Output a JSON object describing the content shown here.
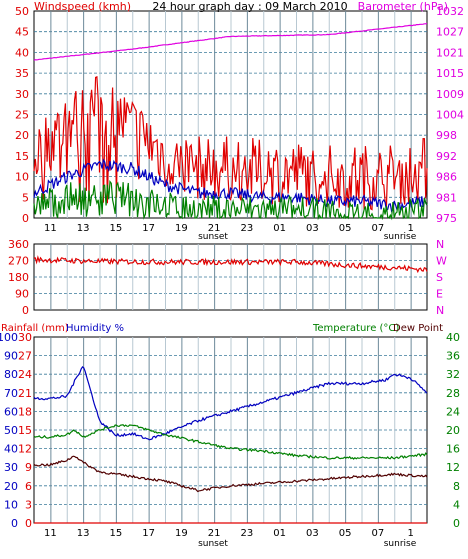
{
  "chart_data": [
    {
      "id": "wind-baro",
      "type": "line",
      "title": "24 hour graph day : 09 March 2010",
      "left_label": "Windspeed (kmh)",
      "right_label": "Barometer (hPa)",
      "ylim_left": [
        0,
        50
      ],
      "left_ticks": [
        "0",
        "5",
        "10",
        "15",
        "20",
        "25",
        "30",
        "35",
        "40",
        "45",
        "50"
      ],
      "ylim_right": [
        975,
        1032
      ],
      "right_ticks": [
        "975",
        "981",
        "986",
        "992",
        "998",
        "1004",
        "1009",
        "1015",
        "1021",
        "1027",
        "1032"
      ],
      "x_labels": [
        "11",
        "13",
        "15",
        "17",
        "19",
        "21",
        "23",
        "01",
        "03",
        "05",
        "07",
        "1"
      ],
      "x_marker_labels": [
        "sunset",
        "sunrise"
      ],
      "grid": true,
      "series": [
        {
          "key": "barometer",
          "color": "#e000e0",
          "axis": "right",
          "x": [
            0,
            6,
            12,
            18,
            24
          ],
          "y": [
            1018.5,
            1021.5,
            1025,
            1025.5,
            1028.5
          ]
        },
        {
          "key": "gust",
          "color": "#e00000",
          "axis": "left",
          "x": [
            0,
            2,
            4,
            6,
            8,
            10,
            12,
            14,
            16,
            18,
            20,
            22,
            24
          ],
          "y": [
            15,
            23,
            27,
            22,
            15,
            12,
            12,
            11,
            11,
            10,
            10,
            10,
            12
          ]
        },
        {
          "key": "average",
          "color": "#0000c0",
          "axis": "left",
          "x": [
            0,
            2,
            4,
            6,
            8,
            10,
            12,
            14,
            16,
            18,
            20,
            22,
            24
          ],
          "y": [
            6,
            10,
            13,
            12,
            8,
            6,
            6,
            5,
            5,
            4,
            4,
            3,
            4
          ]
        },
        {
          "key": "minimum",
          "color": "#008000",
          "axis": "left",
          "x": [
            0,
            2,
            4,
            6,
            8,
            10,
            12,
            14,
            16,
            18,
            20,
            22,
            24
          ],
          "y": [
            3,
            5,
            6,
            5,
            3,
            2,
            2,
            2,
            2,
            1,
            1,
            1,
            2
          ]
        }
      ]
    },
    {
      "id": "wind-dir",
      "type": "line",
      "ylim_left": [
        0,
        360
      ],
      "left_ticks": [
        "0",
        "90",
        "180",
        "270",
        "360"
      ],
      "right_ticks": [
        "N",
        "E",
        "S",
        "W",
        "N"
      ],
      "grid": true,
      "series": [
        {
          "key": "direction",
          "color": "#e00000",
          "axis": "left",
          "x": [
            0,
            4,
            8,
            12,
            16,
            20,
            22,
            24
          ],
          "y": [
            275,
            265,
            262,
            262,
            262,
            240,
            232,
            220
          ]
        }
      ]
    },
    {
      "id": "temp-hum-rain",
      "type": "line",
      "rain_label": "Rainfall (mm)",
      "humidity_label": "Humidity %",
      "temp_label": "Temperature (°C)",
      "dew_label": "Dew Point",
      "ylim_left": [
        0,
        100
      ],
      "left_ticks_hum": [
        "0",
        "10",
        "20",
        "30",
        "40",
        "50",
        "60",
        "70",
        "80",
        "90",
        "100"
      ],
      "left_ticks_rain": [
        "0",
        "3",
        "6",
        "9",
        "12",
        "15",
        "18",
        "21",
        "24",
        "27",
        "30"
      ],
      "ylim_right": [
        0,
        40
      ],
      "right_ticks": [
        "0",
        "4",
        "8",
        "12",
        "16",
        "20",
        "24",
        "28",
        "32",
        "36",
        "40"
      ],
      "grid": true,
      "series": [
        {
          "key": "humidity",
          "color": "#0000c0",
          "axis": "left",
          "x": [
            0,
            1,
            2,
            3,
            4,
            5,
            6,
            7,
            8,
            10,
            12,
            14,
            16,
            18,
            20,
            21.5,
            22,
            23,
            24
          ],
          "y": [
            67,
            67,
            68,
            85,
            55,
            47,
            48,
            45,
            48,
            55,
            60,
            65,
            70,
            75,
            75,
            77,
            80,
            78,
            70
          ]
        },
        {
          "key": "temperature",
          "color": "#008000",
          "axis": "right",
          "x": [
            0,
            1,
            2,
            2.5,
            3,
            4,
            5,
            6,
            7,
            8,
            10,
            12,
            14,
            16,
            18,
            20,
            22,
            24
          ],
          "y": [
            18.5,
            18.5,
            19,
            20,
            18.5,
            20,
            21,
            21,
            20,
            19,
            17.5,
            16,
            15.5,
            14.5,
            14,
            14,
            14,
            14.8
          ]
        },
        {
          "key": "dewpoint",
          "color": "#500000",
          "axis": "right",
          "x": [
            0,
            1,
            2,
            2.5,
            3,
            4,
            6,
            8,
            10,
            12,
            14,
            16,
            18,
            20,
            22,
            24
          ],
          "y": [
            12.5,
            12.5,
            13.5,
            14.5,
            13,
            11,
            10,
            9,
            7,
            8,
            8.5,
            9,
            9.5,
            10,
            10.5,
            10
          ]
        },
        {
          "key": "rainfall",
          "color": "#e00000",
          "axis": "left",
          "x": [
            0,
            24
          ],
          "y": [
            0,
            0
          ]
        }
      ]
    }
  ]
}
